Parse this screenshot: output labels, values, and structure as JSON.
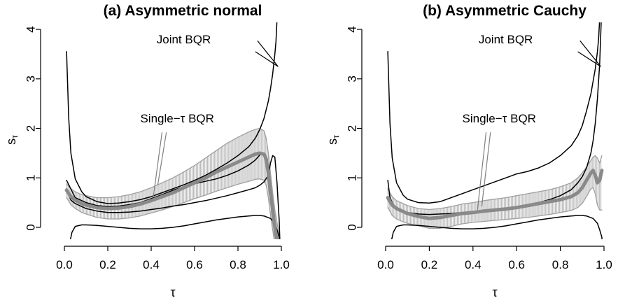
{
  "chart_data": [
    {
      "type": "line",
      "title": "(a) Asymmetric normal",
      "xlabel": "τ",
      "ylabel": "s",
      "ylabel_sub": "τ",
      "xlim": [
        0,
        1
      ],
      "ylim": [
        -0.35,
        4.1
      ],
      "xticks": [
        "0.0",
        "0.2",
        "0.4",
        "0.6",
        "0.8",
        "1.0"
      ],
      "yticks": [
        "0",
        "1",
        "2",
        "3",
        "4"
      ],
      "grid": false,
      "annotations": [
        {
          "text": "Joint BQR",
          "at": [
            0.55,
            3.72
          ],
          "arrows_to": [
            [
              0.985,
              3.25
            ],
            [
              0.985,
              3.25
            ]
          ],
          "arrows_from": [
            [
              0.89,
              3.77
            ],
            [
              0.88,
              3.55
            ]
          ],
          "color": "#000000"
        },
        {
          "text": "Single−τ BQR",
          "at": [
            0.52,
            2.12
          ],
          "arrows_to": [
            [
              0.41,
              0.62
            ],
            [
              0.43,
              0.85
            ]
          ],
          "arrows_from": [
            [
              0.45,
              1.92
            ],
            [
              0.47,
              1.92
            ]
          ],
          "color": "#808080"
        }
      ],
      "series": [
        {
          "role": "joint-upper",
          "color": "#000000",
          "x": [
            0.01,
            0.02,
            0.03,
            0.05,
            0.08,
            0.1,
            0.15,
            0.2,
            0.25,
            0.3,
            0.35,
            0.4,
            0.45,
            0.5,
            0.55,
            0.6,
            0.65,
            0.7,
            0.75,
            0.8,
            0.85,
            0.88,
            0.9,
            0.92,
            0.94,
            0.95,
            0.96,
            0.97,
            0.975,
            0.98,
            0.985,
            0.99
          ],
          "y": [
            3.55,
            2.2,
            1.5,
            0.98,
            0.72,
            0.62,
            0.52,
            0.48,
            0.49,
            0.52,
            0.56,
            0.62,
            0.7,
            0.78,
            0.86,
            0.95,
            1.05,
            1.17,
            1.3,
            1.45,
            1.63,
            1.8,
            1.97,
            2.2,
            2.55,
            2.8,
            3.1,
            3.5,
            3.75,
            4.2,
            4.6,
            5.0
          ]
        },
        {
          "role": "joint-middle",
          "color": "#000000",
          "x": [
            0.01,
            0.05,
            0.1,
            0.15,
            0.2,
            0.25,
            0.3,
            0.35,
            0.4,
            0.45,
            0.5,
            0.55,
            0.6,
            0.65,
            0.7,
            0.75,
            0.8,
            0.85,
            0.88,
            0.9,
            0.92
          ],
          "y": [
            0.95,
            0.6,
            0.5,
            0.44,
            0.42,
            0.43,
            0.46,
            0.5,
            0.58,
            0.66,
            0.75,
            0.82,
            0.88,
            0.93,
            0.98,
            1.05,
            1.14,
            1.26,
            1.36,
            1.46,
            1.5
          ]
        },
        {
          "role": "joint-lower",
          "color": "#000000",
          "x": [
            0.01,
            0.03,
            0.05,
            0.08,
            0.1,
            0.15,
            0.2,
            0.25,
            0.3,
            0.35,
            0.4,
            0.45,
            0.5,
            0.55,
            0.6,
            0.65,
            0.7,
            0.75,
            0.8,
            0.85,
            0.88,
            0.9,
            0.92,
            0.94,
            0.95,
            0.96,
            0.97,
            0.98,
            0.985,
            0.99,
            0.995
          ],
          "y": [
            0.78,
            0.55,
            0.48,
            0.42,
            0.38,
            0.33,
            0.3,
            0.3,
            0.31,
            0.33,
            0.36,
            0.39,
            0.43,
            0.46,
            0.5,
            0.54,
            0.59,
            0.64,
            0.7,
            0.76,
            0.8,
            0.85,
            0.92,
            1.05,
            1.3,
            1.45,
            1.42,
            0.9,
            0.5,
            0.15,
            -0.5
          ]
        },
        {
          "role": "joint-bottom",
          "color": "#000000",
          "x": [
            0.02,
            0.025,
            0.035,
            0.05,
            0.08,
            0.1,
            0.15,
            0.2,
            0.25,
            0.3,
            0.35,
            0.4,
            0.45,
            0.5,
            0.55,
            0.6,
            0.65,
            0.7,
            0.75,
            0.8,
            0.85,
            0.88,
            0.9,
            0.92,
            0.95,
            0.97,
            0.98,
            0.99,
            0.995
          ],
          "y": [
            -0.45,
            -0.3,
            -0.1,
            0.02,
            0.05,
            0.05,
            0.04,
            0.02,
            0.0,
            -0.02,
            -0.03,
            -0.03,
            -0.02,
            0.0,
            0.03,
            0.07,
            0.11,
            0.15,
            0.18,
            0.21,
            0.23,
            0.24,
            0.24,
            0.23,
            0.18,
            0.08,
            -0.05,
            -0.2,
            -0.45
          ]
        },
        {
          "role": "single-median",
          "color": "#8a8a8a",
          "x": [
            0.01,
            0.03,
            0.05,
            0.08,
            0.1,
            0.15,
            0.2,
            0.25,
            0.3,
            0.35,
            0.4,
            0.45,
            0.5,
            0.55,
            0.6,
            0.65,
            0.7,
            0.75,
            0.8,
            0.85,
            0.88,
            0.9,
            0.92,
            0.93,
            0.94,
            0.95,
            0.96,
            0.97,
            0.98,
            0.99
          ],
          "y": [
            0.75,
            0.62,
            0.55,
            0.48,
            0.45,
            0.4,
            0.38,
            0.39,
            0.42,
            0.47,
            0.54,
            0.62,
            0.7,
            0.8,
            0.9,
            1.0,
            1.12,
            1.22,
            1.32,
            1.42,
            1.48,
            1.5,
            1.48,
            1.38,
            1.1,
            0.7,
            0.35,
            0.0,
            -0.3,
            -0.6
          ]
        },
        {
          "role": "single-band-upper",
          "color": "#a0a0a0",
          "x": [
            0.01,
            0.03,
            0.05,
            0.08,
            0.1,
            0.15,
            0.2,
            0.25,
            0.3,
            0.35,
            0.4,
            0.45,
            0.5,
            0.55,
            0.6,
            0.65,
            0.7,
            0.75,
            0.8,
            0.85,
            0.88,
            0.9,
            0.92,
            0.93,
            0.94,
            0.95,
            0.96,
            0.97,
            0.98,
            0.99
          ],
          "y": [
            0.88,
            0.78,
            0.72,
            0.66,
            0.64,
            0.6,
            0.6,
            0.62,
            0.66,
            0.72,
            0.8,
            0.9,
            1.0,
            1.12,
            1.25,
            1.4,
            1.55,
            1.7,
            1.82,
            1.93,
            1.98,
            2.0,
            1.95,
            1.8,
            1.5,
            1.1,
            0.7,
            0.35,
            0.1,
            -0.2
          ]
        },
        {
          "role": "single-band-lower",
          "color": "#a0a0a0",
          "x": [
            0.01,
            0.03,
            0.05,
            0.08,
            0.1,
            0.15,
            0.2,
            0.25,
            0.3,
            0.35,
            0.4,
            0.45,
            0.5,
            0.55,
            0.6,
            0.65,
            0.7,
            0.75,
            0.8,
            0.85,
            0.88,
            0.9,
            0.92,
            0.93,
            0.94,
            0.95,
            0.96,
            0.97,
            0.98,
            0.99
          ],
          "y": [
            0.6,
            0.46,
            0.38,
            0.3,
            0.27,
            0.2,
            0.17,
            0.17,
            0.19,
            0.23,
            0.29,
            0.35,
            0.42,
            0.5,
            0.58,
            0.65,
            0.73,
            0.8,
            0.87,
            0.93,
            0.97,
            0.98,
            0.95,
            0.85,
            0.6,
            0.25,
            -0.05,
            -0.35,
            -0.6,
            -0.9
          ]
        }
      ]
    },
    {
      "type": "line",
      "title": "(b) Asymmetric Cauchy",
      "xlabel": "τ",
      "ylabel": "s",
      "ylabel_sub": "τ",
      "xlim": [
        0,
        1
      ],
      "ylim": [
        -0.35,
        4.1
      ],
      "xticks": [
        "0.0",
        "0.2",
        "0.4",
        "0.6",
        "0.8",
        "1.0"
      ],
      "yticks": [
        "0",
        "1",
        "2",
        "3",
        "4"
      ],
      "grid": false,
      "annotations": [
        {
          "text": "Joint BQR",
          "at": [
            0.55,
            3.72
          ],
          "arrows_to": [
            [
              0.985,
              3.25
            ],
            [
              0.985,
              3.25
            ]
          ],
          "arrows_from": [
            [
              0.89,
              3.77
            ],
            [
              0.88,
              3.55
            ]
          ],
          "color": "#000000"
        },
        {
          "text": "Single−τ BQR",
          "at": [
            0.52,
            2.12
          ],
          "arrows_to": [
            [
              0.42,
              0.33
            ],
            [
              0.44,
              0.42
            ]
          ],
          "arrows_from": [
            [
              0.46,
              1.92
            ],
            [
              0.48,
              1.92
            ]
          ],
          "color": "#808080"
        }
      ],
      "series": [
        {
          "role": "joint-upper",
          "color": "#000000",
          "x": [
            0.01,
            0.02,
            0.03,
            0.05,
            0.08,
            0.1,
            0.15,
            0.2,
            0.25,
            0.3,
            0.35,
            0.4,
            0.45,
            0.5,
            0.55,
            0.6,
            0.65,
            0.7,
            0.75,
            0.8,
            0.85,
            0.88,
            0.9,
            0.92,
            0.94,
            0.95,
            0.96,
            0.97,
            0.975,
            0.98,
            0.985,
            0.99
          ],
          "y": [
            3.55,
            2.1,
            1.4,
            0.9,
            0.65,
            0.57,
            0.5,
            0.49,
            0.52,
            0.6,
            0.68,
            0.76,
            0.84,
            0.92,
            1.0,
            1.08,
            1.13,
            1.2,
            1.3,
            1.45,
            1.65,
            1.85,
            2.05,
            2.35,
            2.7,
            2.95,
            3.2,
            3.55,
            3.8,
            4.2,
            4.6,
            5.0
          ]
        },
        {
          "role": "joint-middle",
          "color": "#000000",
          "x": [
            0.01,
            0.02,
            0.04,
            0.06,
            0.1,
            0.15,
            0.2,
            0.25,
            0.3,
            0.35,
            0.4,
            0.45,
            0.5,
            0.55,
            0.6,
            0.65,
            0.7,
            0.75,
            0.8,
            0.85,
            0.88,
            0.9,
            0.92,
            0.94,
            0.95,
            0.96,
            0.97,
            0.98,
            0.99
          ],
          "y": [
            0.95,
            0.6,
            0.42,
            0.36,
            0.3,
            0.27,
            0.26,
            0.27,
            0.28,
            0.3,
            0.32,
            0.34,
            0.36,
            0.38,
            0.41,
            0.45,
            0.5,
            0.56,
            0.64,
            0.76,
            0.9,
            1.02,
            1.2,
            1.5,
            1.75,
            2.1,
            2.6,
            3.3,
            4.5
          ]
        },
        {
          "role": "joint-bottom",
          "color": "#000000",
          "x": [
            0.02,
            0.025,
            0.035,
            0.05,
            0.08,
            0.1,
            0.15,
            0.2,
            0.25,
            0.3,
            0.35,
            0.4,
            0.45,
            0.5,
            0.55,
            0.6,
            0.65,
            0.7,
            0.75,
            0.8,
            0.85,
            0.88,
            0.9,
            0.92,
            0.95,
            0.97,
            0.98,
            0.99,
            0.995
          ],
          "y": [
            -0.45,
            -0.3,
            -0.1,
            0.02,
            0.05,
            0.05,
            0.04,
            0.02,
            0.0,
            -0.02,
            -0.03,
            -0.03,
            -0.02,
            0.0,
            0.03,
            0.07,
            0.11,
            0.15,
            0.18,
            0.21,
            0.23,
            0.24,
            0.24,
            0.23,
            0.18,
            0.08,
            -0.05,
            -0.2,
            -0.45
          ]
        },
        {
          "role": "single-median",
          "color": "#8a8a8a",
          "x": [
            0.01,
            0.03,
            0.05,
            0.08,
            0.1,
            0.15,
            0.2,
            0.25,
            0.3,
            0.35,
            0.4,
            0.45,
            0.5,
            0.55,
            0.6,
            0.65,
            0.7,
            0.75,
            0.8,
            0.85,
            0.88,
            0.9,
            0.92,
            0.94,
            0.95,
            0.96,
            0.97,
            0.98,
            0.99
          ],
          "y": [
            0.6,
            0.45,
            0.38,
            0.32,
            0.28,
            0.22,
            0.18,
            0.2,
            0.24,
            0.28,
            0.3,
            0.33,
            0.35,
            0.37,
            0.4,
            0.44,
            0.48,
            0.52,
            0.56,
            0.62,
            0.7,
            0.8,
            0.95,
            1.1,
            1.15,
            1.05,
            0.9,
            0.95,
            1.15
          ]
        },
        {
          "role": "single-band-upper",
          "color": "#a0a0a0",
          "x": [
            0.01,
            0.03,
            0.05,
            0.08,
            0.1,
            0.15,
            0.2,
            0.25,
            0.3,
            0.35,
            0.4,
            0.45,
            0.5,
            0.55,
            0.6,
            0.65,
            0.7,
            0.75,
            0.8,
            0.85,
            0.88,
            0.9,
            0.92,
            0.94,
            0.95,
            0.96,
            0.97,
            0.98,
            0.99
          ],
          "y": [
            0.78,
            0.62,
            0.54,
            0.48,
            0.44,
            0.38,
            0.36,
            0.38,
            0.42,
            0.47,
            0.5,
            0.54,
            0.57,
            0.6,
            0.64,
            0.68,
            0.72,
            0.76,
            0.82,
            0.9,
            1.0,
            1.1,
            1.22,
            1.35,
            1.42,
            1.45,
            1.4,
            1.3,
            1.45
          ]
        },
        {
          "role": "single-band-lower",
          "color": "#a0a0a0",
          "x": [
            0.01,
            0.03,
            0.05,
            0.08,
            0.1,
            0.15,
            0.2,
            0.25,
            0.3,
            0.35,
            0.4,
            0.45,
            0.5,
            0.55,
            0.6,
            0.65,
            0.7,
            0.75,
            0.8,
            0.85,
            0.88,
            0.9,
            0.92,
            0.94,
            0.95,
            0.96,
            0.97,
            0.98,
            0.99
          ],
          "y": [
            0.4,
            0.24,
            0.17,
            0.11,
            0.08,
            0.03,
            -0.02,
            -0.02,
            0.02,
            0.07,
            0.1,
            0.12,
            0.14,
            0.16,
            0.18,
            0.2,
            0.23,
            0.26,
            0.3,
            0.34,
            0.4,
            0.48,
            0.62,
            0.78,
            0.8,
            0.68,
            0.45,
            0.35,
            0.35
          ]
        }
      ]
    }
  ]
}
